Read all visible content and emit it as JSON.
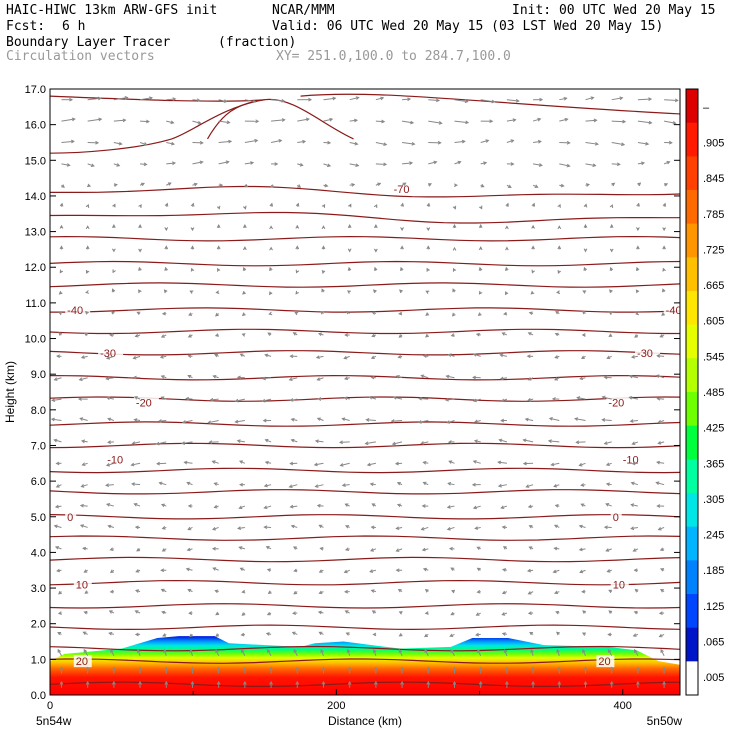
{
  "header": {
    "model": "HAIC-HIWC 13km ARW-GFS init",
    "org": "NCAR/MMM",
    "init": "Init: 00 UTC Wed 20 May 15",
    "fcst_label": "Fcst:",
    "fcst_value": "6 h",
    "valid": "Valid: 06 UTC Wed 20 May 15 (03 LST Wed 20 May 15)",
    "field": "Boundary Layer Tracer",
    "field_units": "(fraction)",
    "vectors": "Circulation vectors",
    "xy": "XY= 251.0,100.0 to 284.7,100.0"
  },
  "chart_data": {
    "type": "heatmap",
    "xlabel": "Distance (km)",
    "ylabel": "Height (km)",
    "xlim": [
      0,
      440
    ],
    "ylim": [
      0,
      17
    ],
    "x_ticks": [
      "0",
      "200",
      "400"
    ],
    "x_tick_values": [
      0,
      200,
      400
    ],
    "y_ticks": [
      "0.0",
      "1.0",
      "2.0",
      "3.0",
      "4.0",
      "5.0",
      "6.0",
      "7.0",
      "8.0",
      "9.0",
      "10.0",
      "11.0",
      "12.0",
      "13.0",
      "14.0",
      "15.0",
      "16.0",
      "17.0"
    ],
    "left_end_label": "5n54w",
    "right_end_label": "5n50w",
    "colorbar": {
      "labels": [
        "–",
        ".905",
        ".845",
        ".785",
        ".725",
        ".665",
        ".605",
        ".545",
        ".485",
        ".425",
        ".365",
        ".305",
        ".245",
        ".185",
        ".125",
        ".065",
        ".005"
      ],
      "colors": [
        "#dc0000",
        "#ff1a00",
        "#ff4000",
        "#ff6a00",
        "#ff9600",
        "#ffc000",
        "#ffe600",
        "#e6ff00",
        "#b4ff00",
        "#6eff00",
        "#00ff3c",
        "#00ffa0",
        "#00e6e6",
        "#00b4ff",
        "#0082ff",
        "#0046ff",
        "#0014c8",
        "#ffffff"
      ]
    },
    "tracer_top_km": [
      [
        0,
        0.95
      ],
      [
        10,
        1.15
      ],
      [
        50,
        1.3
      ],
      [
        75,
        1.6
      ],
      [
        90,
        1.65
      ],
      [
        115,
        1.65
      ],
      [
        125,
        1.45
      ],
      [
        175,
        1.35
      ],
      [
        185,
        1.45
      ],
      [
        205,
        1.5
      ],
      [
        245,
        1.3
      ],
      [
        280,
        1.35
      ],
      [
        295,
        1.6
      ],
      [
        320,
        1.6
      ],
      [
        345,
        1.4
      ],
      [
        390,
        1.35
      ],
      [
        410,
        1.25
      ],
      [
        425,
        0.95
      ],
      [
        440,
        0.85
      ]
    ],
    "temperature_contours": {
      "color": "#8b1a1a",
      "levels_km": [
        0.3,
        0.95,
        1.3,
        1.9,
        2.5,
        3.15,
        3.8,
        4.4,
        5.0,
        5.7,
        6.3,
        7.0,
        7.6,
        8.3,
        8.9,
        9.6,
        10.2,
        10.8,
        11.5,
        12.1,
        12.8,
        13.4,
        14.1
      ],
      "labels": [
        {
          "text": "20",
          "x": 18,
          "y": 0.95
        },
        {
          "text": "20",
          "x": 383,
          "y": 0.95
        },
        {
          "text": "10",
          "x": 18,
          "y": 3.1
        },
        {
          "text": "10",
          "x": 393,
          "y": 3.1
        },
        {
          "text": "0",
          "x": 12,
          "y": 5.0
        },
        {
          "text": "0",
          "x": 393,
          "y": 5.0
        },
        {
          "text": "-10",
          "x": 40,
          "y": 6.6
        },
        {
          "text": "-10",
          "x": 400,
          "y": 6.6
        },
        {
          "text": "-20",
          "x": 60,
          "y": 8.2
        },
        {
          "text": "-20",
          "x": 390,
          "y": 8.2
        },
        {
          "text": "-30",
          "x": 35,
          "y": 9.6
        },
        {
          "text": "-30",
          "x": 410,
          "y": 9.6
        },
        {
          "text": "-40",
          "x": 12,
          "y": 10.8
        },
        {
          "text": "-40",
          "x": 430,
          "y": 10.8
        },
        {
          "text": "-70",
          "x": 240,
          "y": 14.2
        }
      ]
    },
    "vector_field": {
      "color": "#888888",
      "rows_km": [
        16.7,
        16.1,
        15.5,
        14.9,
        14.3,
        13.7,
        13.1,
        12.5,
        11.9,
        11.3,
        10.7,
        10.1,
        9.5,
        8.9,
        8.3,
        7.7,
        7.1,
        6.5,
        5.9,
        5.3,
        4.7,
        4.1,
        3.5,
        2.9,
        2.3,
        1.7,
        1.1,
        0.6,
        0.2
      ],
      "u": [
        1.2,
        1.2,
        1.1,
        0.9,
        0.4,
        0.1,
        0.0,
        0.0,
        -0.1,
        -0.2,
        -0.3,
        -0.4,
        -0.6,
        -0.7,
        -0.8,
        -0.9,
        -0.9,
        -0.8,
        -0.7,
        -0.6,
        -0.6,
        -0.5,
        -0.5,
        -0.4,
        -0.4,
        -0.4,
        -0.3,
        0.0,
        0.0
      ]
    }
  }
}
